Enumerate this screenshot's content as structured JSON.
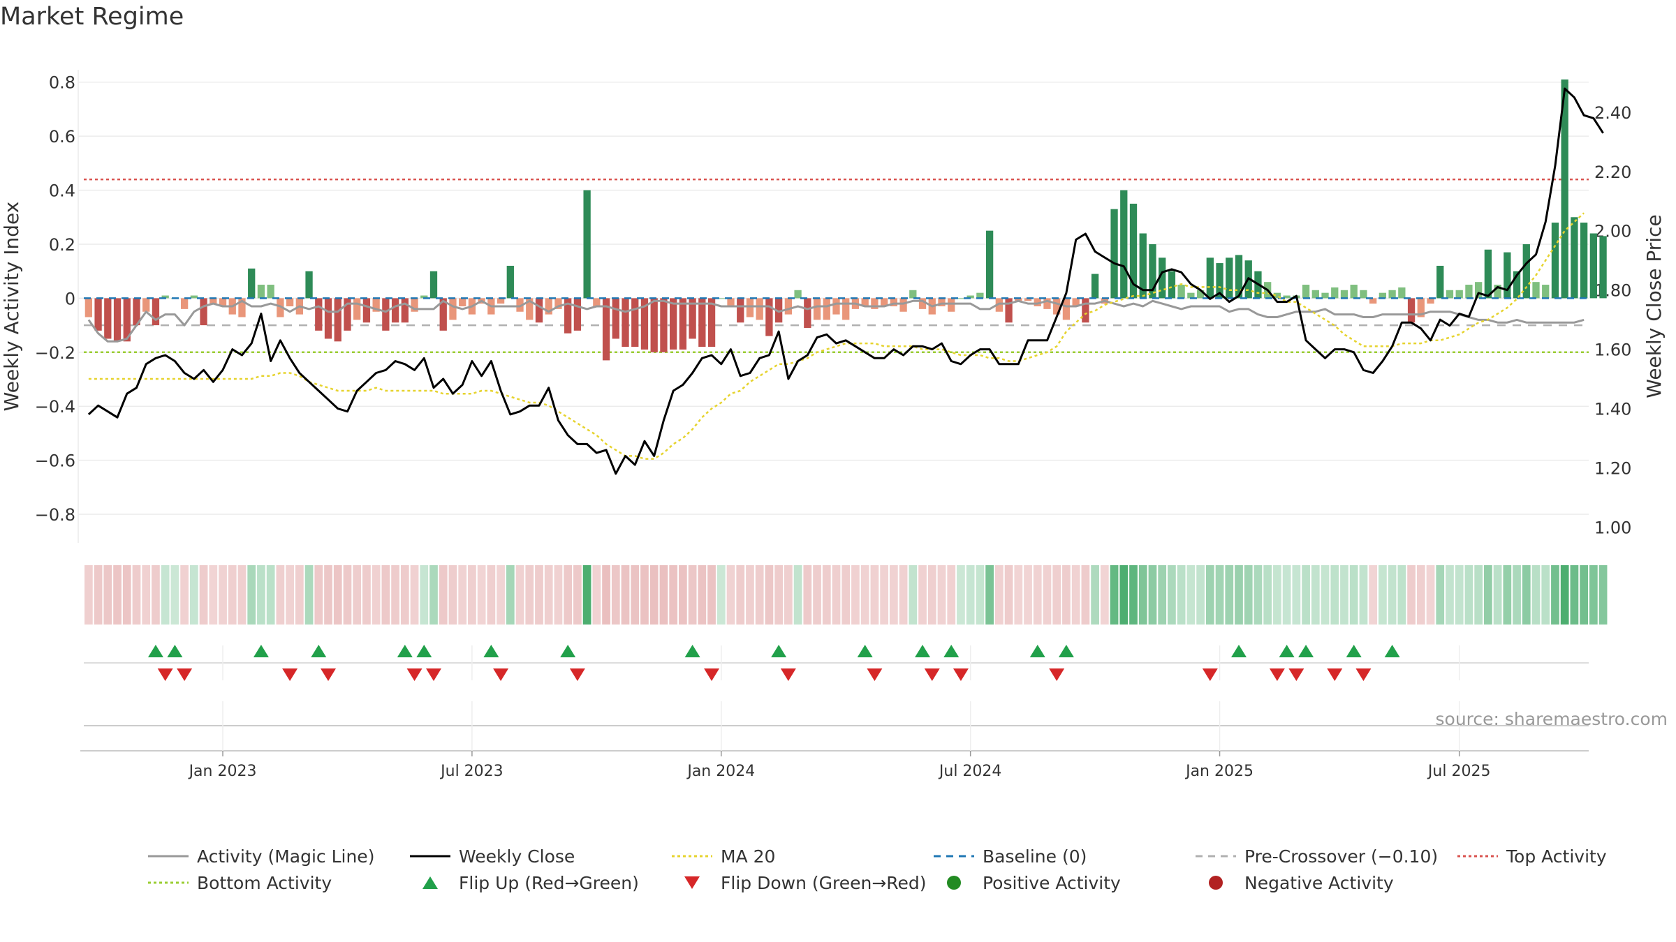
{
  "title": "Market Regime",
  "source": "source: sharemaestro.com",
  "colors": {
    "pos_dark": "#2e8b57",
    "pos_light": "#7fbf7f",
    "neg_dark": "#c0504d",
    "neg_light": "#e9967a",
    "activity_line": "#999999",
    "close_line": "#000000",
    "ma_line": "#e6d32e",
    "baseline": "#1f77b4",
    "precross": "#b0b0b0",
    "top": "#d9534f",
    "bottom": "#9acd32",
    "flip_up": "#21a04a",
    "flip_down": "#d62728"
  },
  "legend": [
    {
      "label": "Activity (Magic Line)",
      "kind": "line",
      "color": "#999999",
      "dash": ""
    },
    {
      "label": "Weekly Close",
      "kind": "line",
      "color": "#000000",
      "dash": ""
    },
    {
      "label": "MA 20",
      "kind": "line",
      "color": "#e6d32e",
      "dash": "4,4"
    },
    {
      "label": "Baseline (0)",
      "kind": "line",
      "color": "#1f77b4",
      "dash": "10,8"
    },
    {
      "label": "Pre-Crossover (−0.10)",
      "kind": "line",
      "color": "#b0b0b0",
      "dash": "10,8"
    },
    {
      "label": "Top Activity",
      "kind": "line",
      "color": "#d9534f",
      "dash": "4,4"
    },
    {
      "label": "Bottom Activity",
      "kind": "line",
      "color": "#9acd32",
      "dash": "4,4"
    },
    {
      "label": "Flip Up (Red→Green)",
      "kind": "up",
      "color": "#21a04a",
      "dash": ""
    },
    {
      "label": "Flip Down (Green→Red)",
      "kind": "down",
      "color": "#d62728",
      "dash": ""
    },
    {
      "label": "Positive Activity",
      "kind": "dot",
      "color": "#228b22",
      "dash": ""
    },
    {
      "label": "Negative Activity",
      "kind": "dot",
      "color": "#b22222",
      "dash": ""
    }
  ],
  "chart_data": {
    "type": "bar",
    "title": "Market Regime",
    "ylabel": "Weekly Activity Index",
    "y2label": "Weekly Close Price",
    "ylim": [
      -0.88,
      0.82
    ],
    "y2lim": [
      0.97,
      2.52
    ],
    "yticks": [
      0.8,
      0.6,
      0.4,
      0.2,
      0,
      -0.2,
      -0.4,
      -0.6,
      -0.8
    ],
    "ytick_labels": [
      "0.8",
      "0.6",
      "0.4",
      "0.2",
      "0",
      "−0.2",
      "−0.4",
      "−0.6",
      "−0.8"
    ],
    "y2ticks": [
      2.4,
      2.2,
      2.0,
      1.8,
      1.6,
      1.4,
      1.2,
      1.0
    ],
    "y2tick_labels": [
      "2.40",
      "2.20",
      "2.00",
      "1.80",
      "1.60",
      "1.40",
      "1.20",
      "1.00"
    ],
    "xtick_labels": [
      "Jan 2023",
      "Jul 2023",
      "Jan 2024",
      "Jul 2024",
      "Jan 2025",
      "Jul 2025"
    ],
    "xtick_weeks": [
      14,
      40,
      66,
      92,
      118,
      143
    ],
    "n_weeks": 157,
    "reference_lines": {
      "baseline": 0,
      "pre_crossover": -0.1,
      "top_activity": 0.44,
      "bottom_activity": -0.2
    },
    "activity": [
      -0.08,
      -0.13,
      -0.16,
      -0.16,
      -0.15,
      -0.1,
      -0.05,
      -0.08,
      -0.06,
      -0.06,
      -0.1,
      -0.05,
      -0.03,
      -0.02,
      -0.03,
      -0.03,
      -0.01,
      -0.03,
      -0.03,
      -0.02,
      -0.03,
      -0.05,
      -0.03,
      -0.04,
      -0.03,
      -0.05,
      -0.05,
      -0.02,
      -0.02,
      -0.03,
      -0.04,
      -0.05,
      -0.03,
      -0.02,
      -0.04,
      -0.04,
      -0.04,
      -0.01,
      -0.03,
      -0.04,
      -0.03,
      -0.01,
      -0.03,
      -0.03,
      -0.03,
      -0.03,
      -0.01,
      -0.03,
      -0.05,
      -0.03,
      -0.02,
      -0.03,
      -0.04,
      -0.03,
      -0.03,
      -0.04,
      -0.05,
      -0.04,
      -0.03,
      -0.01,
      -0.01,
      -0.02,
      -0.02,
      -0.02,
      -0.02,
      -0.02,
      -0.03,
      -0.03,
      -0.03,
      -0.03,
      -0.03,
      -0.03,
      -0.05,
      -0.04,
      -0.03,
      -0.04,
      -0.03,
      -0.03,
      -0.02,
      -0.02,
      -0.02,
      -0.03,
      -0.03,
      -0.03,
      -0.02,
      -0.02,
      -0.01,
      -0.01,
      -0.03,
      -0.02,
      -0.02,
      -0.02,
      -0.02,
      -0.04,
      -0.04,
      -0.02,
      -0.02,
      -0.01,
      -0.02,
      -0.02,
      -0.01,
      -0.02,
      -0.03,
      -0.03,
      -0.02,
      -0.02,
      -0.01,
      -0.02,
      -0.03,
      -0.02,
      -0.03,
      -0.01,
      -0.02,
      -0.03,
      -0.04,
      -0.03,
      -0.03,
      -0.03,
      -0.03,
      -0.05,
      -0.04,
      -0.04,
      -0.06,
      -0.07,
      -0.07,
      -0.06,
      -0.05,
      -0.05,
      -0.05,
      -0.04,
      -0.06,
      -0.06,
      -0.06,
      -0.07,
      -0.07,
      -0.06,
      -0.06,
      -0.06,
      -0.06,
      -0.06,
      -0.05,
      -0.05,
      -0.05,
      -0.06,
      -0.07,
      -0.08,
      -0.08,
      -0.09,
      -0.09,
      -0.08,
      -0.09,
      -0.09,
      -0.09,
      -0.09,
      -0.09,
      -0.09,
      -0.08
    ],
    "close": [
      1.38,
      1.41,
      1.39,
      1.37,
      1.45,
      1.47,
      1.55,
      1.57,
      1.58,
      1.56,
      1.52,
      1.5,
      1.53,
      1.49,
      1.53,
      1.6,
      1.58,
      1.62,
      1.72,
      1.56,
      1.63,
      1.57,
      1.52,
      1.49,
      1.46,
      1.43,
      1.4,
      1.39,
      1.46,
      1.49,
      1.52,
      1.53,
      1.56,
      1.55,
      1.53,
      1.57,
      1.47,
      1.5,
      1.45,
      1.48,
      1.56,
      1.51,
      1.56,
      1.46,
      1.38,
      1.39,
      1.41,
      1.41,
      1.47,
      1.36,
      1.31,
      1.28,
      1.28,
      1.25,
      1.26,
      1.18,
      1.24,
      1.21,
      1.29,
      1.24,
      1.36,
      1.46,
      1.48,
      1.52,
      1.57,
      1.58,
      1.55,
      1.6,
      1.51,
      1.52,
      1.57,
      1.58,
      1.66,
      1.5,
      1.56,
      1.58,
      1.64,
      1.65,
      1.62,
      1.63,
      1.61,
      1.59,
      1.57,
      1.57,
      1.6,
      1.58,
      1.61,
      1.61,
      1.6,
      1.62,
      1.56,
      1.55,
      1.58,
      1.6,
      1.6,
      1.55,
      1.55,
      1.55,
      1.63,
      1.63,
      1.63,
      1.71,
      1.79,
      1.97,
      1.99,
      1.93,
      1.91,
      1.89,
      1.88,
      1.82,
      1.8,
      1.8,
      1.86,
      1.87,
      1.86,
      1.82,
      1.8,
      1.77,
      1.79,
      1.76,
      1.78,
      1.84,
      1.82,
      1.8,
      1.76,
      1.76,
      1.78,
      1.63,
      1.6,
      1.57,
      1.6,
      1.6,
      1.59,
      1.53,
      1.52,
      1.56,
      1.61,
      1.69,
      1.69,
      1.67,
      1.63,
      1.7,
      1.68,
      1.72,
      1.71,
      1.79,
      1.78,
      1.81,
      1.8,
      1.85,
      1.89,
      1.92,
      2.03,
      2.22,
      2.48,
      2.45,
      2.39,
      2.38,
      2.33
    ],
    "ma20": [
      1.5,
      1.5,
      1.5,
      1.5,
      1.5,
      1.5,
      1.5,
      1.5,
      1.5,
      1.5,
      1.5,
      1.5,
      1.5,
      1.5,
      1.5,
      1.5,
      1.5,
      1.5,
      1.51,
      1.51,
      1.52,
      1.52,
      1.51,
      1.49,
      1.48,
      1.47,
      1.46,
      1.46,
      1.46,
      1.46,
      1.47,
      1.46,
      1.46,
      1.46,
      1.46,
      1.46,
      1.46,
      1.45,
      1.45,
      1.45,
      1.45,
      1.46,
      1.46,
      1.45,
      1.44,
      1.43,
      1.42,
      1.42,
      1.41,
      1.39,
      1.37,
      1.35,
      1.33,
      1.31,
      1.28,
      1.26,
      1.24,
      1.24,
      1.23,
      1.23,
      1.25,
      1.28,
      1.3,
      1.33,
      1.37,
      1.4,
      1.42,
      1.45,
      1.46,
      1.49,
      1.51,
      1.53,
      1.55,
      1.55,
      1.56,
      1.57,
      1.59,
      1.6,
      1.61,
      1.62,
      1.62,
      1.62,
      1.62,
      1.61,
      1.61,
      1.61,
      1.61,
      1.6,
      1.6,
      1.6,
      1.59,
      1.58,
      1.58,
      1.58,
      1.57,
      1.57,
      1.56,
      1.56,
      1.57,
      1.58,
      1.59,
      1.61,
      1.66,
      1.69,
      1.72,
      1.73,
      1.75,
      1.76,
      1.77,
      1.78,
      1.78,
      1.79,
      1.8,
      1.81,
      1.82,
      1.81,
      1.81,
      1.81,
      1.81,
      1.8,
      1.8,
      1.8,
      1.79,
      1.79,
      1.78,
      1.76,
      1.76,
      1.74,
      1.72,
      1.7,
      1.68,
      1.65,
      1.63,
      1.61,
      1.61,
      1.61,
      1.61,
      1.62,
      1.62,
      1.62,
      1.63,
      1.63,
      1.64,
      1.65,
      1.67,
      1.69,
      1.7,
      1.72,
      1.74,
      1.77,
      1.81,
      1.85,
      1.9,
      1.95,
      2.0,
      2.03,
      2.06
    ],
    "activity_bars": [
      -0.07,
      -0.12,
      -0.15,
      -0.16,
      -0.16,
      -0.1,
      -0.05,
      -0.1,
      0.01,
      0.0,
      -0.04,
      0.01,
      -0.1,
      -0.02,
      -0.03,
      -0.06,
      -0.07,
      0.11,
      0.05,
      0.05,
      -0.07,
      -0.03,
      -0.06,
      0.1,
      -0.12,
      -0.15,
      -0.16,
      -0.12,
      -0.08,
      -0.09,
      -0.05,
      -0.12,
      -0.09,
      -0.09,
      -0.05,
      0.01,
      0.1,
      -0.12,
      -0.08,
      -0.03,
      -0.06,
      -0.02,
      -0.06,
      -0.02,
      0.12,
      -0.05,
      -0.08,
      -0.09,
      -0.06,
      -0.04,
      -0.13,
      -0.12,
      0.4,
      -0.03,
      -0.23,
      -0.15,
      -0.18,
      -0.18,
      -0.19,
      -0.2,
      -0.2,
      -0.19,
      -0.19,
      -0.15,
      -0.18,
      -0.18,
      0.0,
      -0.03,
      -0.09,
      -0.07,
      -0.08,
      -0.14,
      -0.09,
      -0.06,
      0.03,
      -0.11,
      -0.08,
      -0.08,
      -0.06,
      -0.08,
      -0.04,
      -0.03,
      -0.04,
      -0.03,
      -0.03,
      -0.05,
      0.03,
      -0.04,
      -0.06,
      -0.03,
      -0.05,
      0.0,
      0.01,
      0.02,
      0.25,
      -0.05,
      -0.09,
      -0.01,
      -0.01,
      -0.03,
      -0.04,
      -0.06,
      -0.08,
      -0.03,
      -0.09,
      0.09,
      -0.02,
      0.33,
      0.4,
      0.35,
      0.24,
      0.2,
      0.15,
      0.1,
      0.05,
      0.02,
      0.03,
      0.15,
      0.13,
      0.15,
      0.16,
      0.14,
      0.1,
      0.06,
      0.02,
      0.01,
      0.01,
      0.05,
      0.03,
      0.02,
      0.04,
      0.03,
      0.05,
      0.03,
      -0.02,
      0.02,
      0.03,
      0.04,
      -0.09,
      -0.07,
      -0.02,
      0.12,
      0.03,
      0.03,
      0.05,
      0.06,
      0.18,
      0.05,
      0.17,
      0.1,
      0.2,
      0.06,
      0.05,
      0.28,
      0.81,
      0.3,
      0.28,
      0.24,
      0.23
    ],
    "flip_up_weeks": [
      7,
      9,
      18,
      24,
      33,
      35,
      42,
      50,
      63,
      72,
      81,
      87,
      90,
      99,
      102,
      120,
      125,
      127,
      132,
      136
    ],
    "flip_down_weeks": [
      8,
      10,
      21,
      25,
      34,
      36,
      43,
      51,
      65,
      73,
      82,
      88,
      91,
      101,
      117,
      124,
      126,
      130,
      133
    ]
  }
}
